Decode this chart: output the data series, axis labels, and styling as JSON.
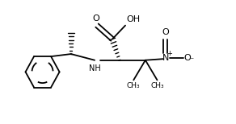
{
  "bg_color": "#ffffff",
  "line_color": "#000000",
  "figure_width": 2.92,
  "figure_height": 1.54,
  "dpi": 100,
  "xlim": [
    0,
    10
  ],
  "ylim": [
    0,
    5.0
  ]
}
